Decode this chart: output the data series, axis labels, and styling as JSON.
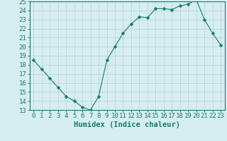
{
  "x": [
    0,
    1,
    2,
    3,
    4,
    5,
    6,
    7,
    8,
    9,
    10,
    11,
    12,
    13,
    14,
    15,
    16,
    17,
    18,
    19,
    20,
    21,
    22,
    23
  ],
  "y": [
    18.5,
    17.5,
    16.5,
    15.5,
    14.5,
    14.0,
    13.3,
    13.0,
    14.5,
    18.5,
    20.0,
    21.5,
    22.5,
    23.3,
    23.2,
    24.2,
    24.2,
    24.1,
    24.5,
    24.7,
    25.2,
    23.0,
    21.5,
    20.2
  ],
  "line_color": "#1a7a6e",
  "marker": "D",
  "marker_size": 2.5,
  "bg_color": "#d6eef0",
  "grid_color": "#b8d8dc",
  "xlabel": "Humidex (Indice chaleur)",
  "xlim": [
    -0.5,
    23.5
  ],
  "ylim": [
    13,
    25
  ],
  "xtick_labels": [
    "0",
    "1",
    "2",
    "3",
    "4",
    "5",
    "6",
    "7",
    "8",
    "9",
    "10",
    "11",
    "12",
    "13",
    "14",
    "15",
    "16",
    "17",
    "18",
    "19",
    "20",
    "21",
    "22",
    "23"
  ],
  "ytick_values": [
    13,
    14,
    15,
    16,
    17,
    18,
    19,
    20,
    21,
    22,
    23,
    24,
    25
  ],
  "tick_color": "#1a7a6e",
  "axis_color": "#1a7a6e",
  "label_fontsize": 6.5,
  "xlabel_fontsize": 7.5
}
